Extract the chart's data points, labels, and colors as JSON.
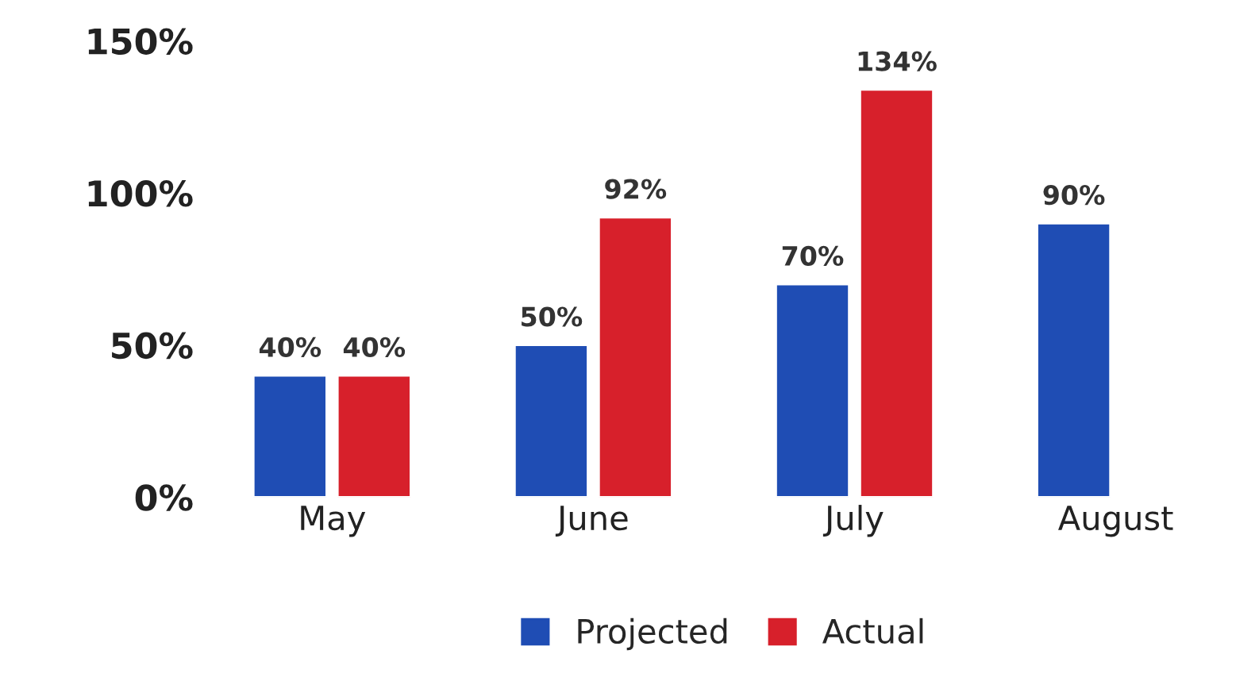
{
  "chart_data": {
    "type": "bar",
    "categories": [
      "May",
      "June",
      "July",
      "August"
    ],
    "series": [
      {
        "name": "Projected",
        "color": "#1f4db4",
        "values": [
          40,
          50,
          70,
          90
        ],
        "value_labels": [
          "40%",
          "50%",
          "70%",
          "90%"
        ]
      },
      {
        "name": "Actual",
        "color": "#d7202b",
        "values": [
          40,
          92,
          134,
          null
        ],
        "value_labels": [
          "40%",
          "92%",
          "134%",
          null
        ]
      }
    ],
    "ylim": [
      0,
      150
    ],
    "yticks": [
      {
        "value": 0,
        "label": "0%"
      },
      {
        "value": 50,
        "label": "50%"
      },
      {
        "value": 100,
        "label": "100%"
      },
      {
        "value": 150,
        "label": "150%"
      }
    ],
    "grid": false,
    "legend": "bottom"
  }
}
